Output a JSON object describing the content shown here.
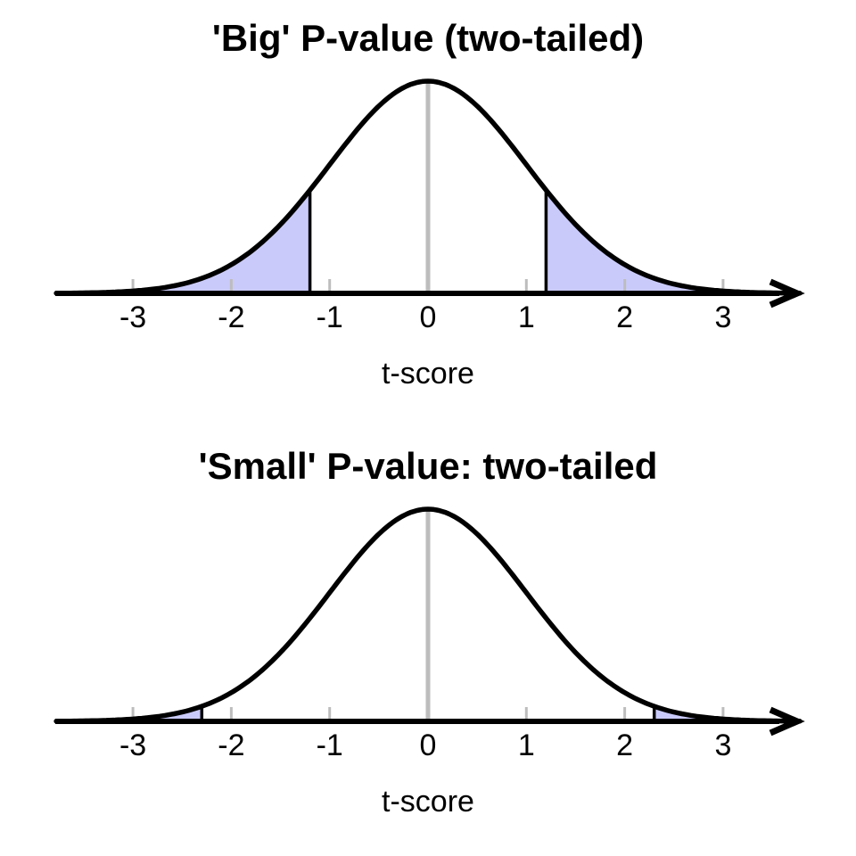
{
  "page": {
    "background": "#ffffff"
  },
  "chart_data": [
    {
      "type": "area",
      "title": "'Big' P-value (two-tailed)",
      "xlabel": "t-score",
      "curve": "standard normal / t density, mean 0",
      "x_ticks": [
        "-3",
        "-2",
        "-1",
        "0",
        "1",
        "2",
        "3"
      ],
      "x_tick_values": [
        -3,
        -2,
        -1,
        0,
        1,
        2,
        3
      ],
      "xlim": [
        -3.8,
        3.8
      ],
      "critical_value": 1.2,
      "shaded_regions": [
        {
          "from": -3.8,
          "to": -1.2
        },
        {
          "from": 1.2,
          "to": 3.8
        }
      ],
      "center_line_x": 0,
      "grid": false,
      "legend": false,
      "colors": {
        "shade_fill": "#cacafa",
        "shade_border": "#000000",
        "curve": "#000000",
        "axis": "#000000",
        "center_line": "#bdbdbd",
        "tick": "#bdbdbd",
        "text": "#000000"
      }
    },
    {
      "type": "area",
      "title": "'Small' P-value: two-tailed",
      "xlabel": "t-score",
      "curve": "standard normal / t density, mean 0",
      "x_ticks": [
        "-3",
        "-2",
        "-1",
        "0",
        "1",
        "2",
        "3"
      ],
      "x_tick_values": [
        -3,
        -2,
        -1,
        0,
        1,
        2,
        3
      ],
      "xlim": [
        -3.8,
        3.8
      ],
      "critical_value": 2.3,
      "shaded_regions": [
        {
          "from": -3.8,
          "to": -2.3
        },
        {
          "from": 2.3,
          "to": 3.8
        }
      ],
      "center_line_x": 0,
      "grid": false,
      "legend": false,
      "colors": {
        "shade_fill": "#cacafa",
        "shade_border": "#000000",
        "curve": "#000000",
        "axis": "#000000",
        "center_line": "#bdbdbd",
        "tick": "#bdbdbd",
        "text": "#000000"
      }
    }
  ]
}
